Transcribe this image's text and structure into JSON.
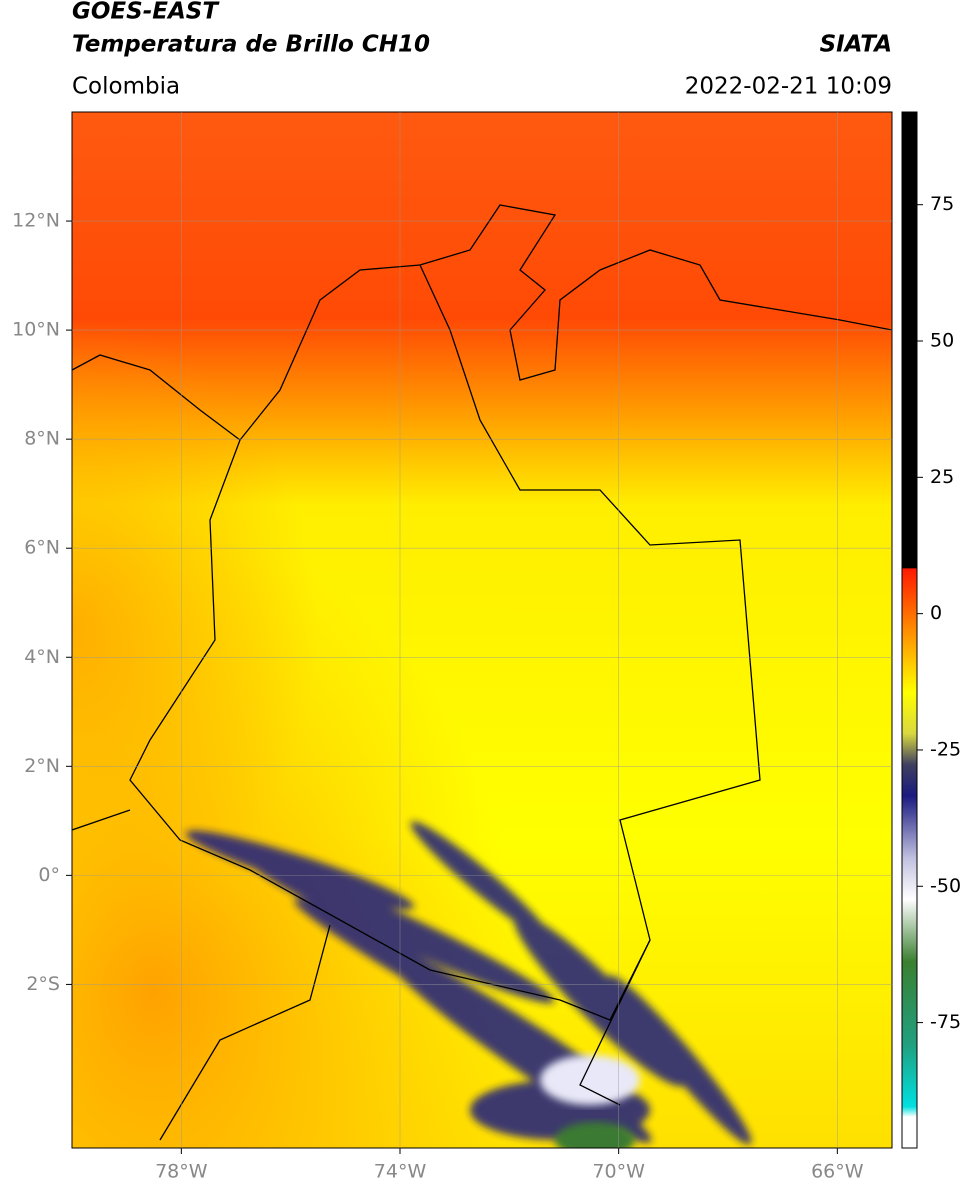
{
  "header": {
    "title": "GOES-EAST",
    "subtitle": "Temperatura de Brillo CH10",
    "source": "SIATA",
    "region": "Colombia",
    "timestamp": "2022-02-21 10:09"
  },
  "map": {
    "xlim": [
      -80,
      -65
    ],
    "ylim": [
      -5,
      14
    ],
    "xticks": [
      {
        "value": -78,
        "label": "78°W"
      },
      {
        "value": -74,
        "label": "74°W"
      },
      {
        "value": -70,
        "label": "70°W"
      },
      {
        "value": -66,
        "label": "66°W"
      }
    ],
    "yticks": [
      {
        "value": 12,
        "label": "12°N"
      },
      {
        "value": 10,
        "label": "10°N"
      },
      {
        "value": 8,
        "label": "8°N"
      },
      {
        "value": 6,
        "label": "6°N"
      },
      {
        "value": 4,
        "label": "4°N"
      },
      {
        "value": 2,
        "label": "2°N"
      },
      {
        "value": 0,
        "label": "0°"
      },
      {
        "value": -2,
        "label": "2°S"
      }
    ]
  },
  "colorbar": {
    "lim": [
      -98,
      92
    ],
    "ticks": [
      75,
      50,
      25,
      0,
      -25,
      -50,
      -75
    ]
  }
}
